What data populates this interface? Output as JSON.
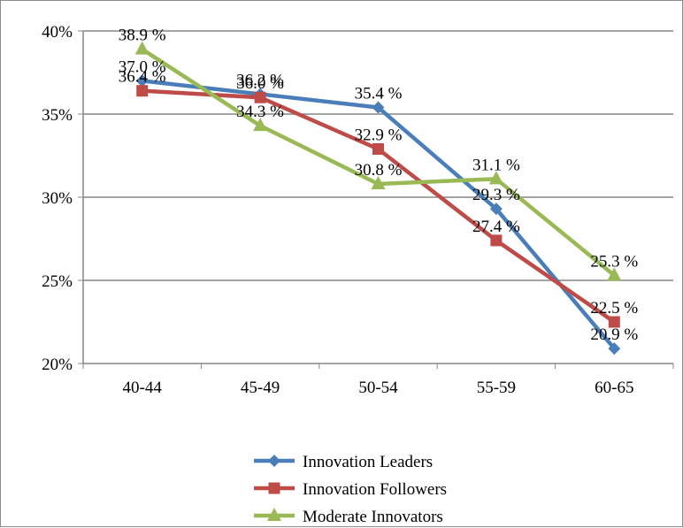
{
  "chart_data": {
    "type": "line",
    "categories": [
      "40-44",
      "45-49",
      "50-54",
      "55-59",
      "60-65"
    ],
    "series": [
      {
        "name": "Innovation Leaders",
        "color": "#4a7ebb",
        "marker": "diamond",
        "values": [
          37.0,
          36.2,
          35.4,
          29.3,
          20.9
        ],
        "labels": [
          "37.0 %",
          "36.2 %",
          "35.4 %",
          "29.3 %",
          "20.9 %"
        ]
      },
      {
        "name": "Innovation Followers",
        "color": "#be4b48",
        "marker": "square",
        "values": [
          36.4,
          36.0,
          32.9,
          27.4,
          22.5
        ],
        "labels": [
          "36.4 %",
          "36.0 %",
          "32.9 %",
          "27.4 %",
          "22.5 %"
        ]
      },
      {
        "name": "Moderate Innovators",
        "color": "#98b954",
        "marker": "triangle",
        "values": [
          38.9,
          34.3,
          30.8,
          31.1,
          25.3
        ],
        "labels": [
          "38.9 %",
          "34.3 %",
          "30.8 %",
          "31.1 %",
          "25.3 %"
        ]
      }
    ],
    "yticks": [
      20,
      25,
      30,
      35,
      40
    ],
    "ytick_labels": [
      "20%",
      "25%",
      "30%",
      "35%",
      "40%"
    ],
    "ylim": [
      20,
      40
    ],
    "grid": true,
    "legend": "bottom"
  }
}
